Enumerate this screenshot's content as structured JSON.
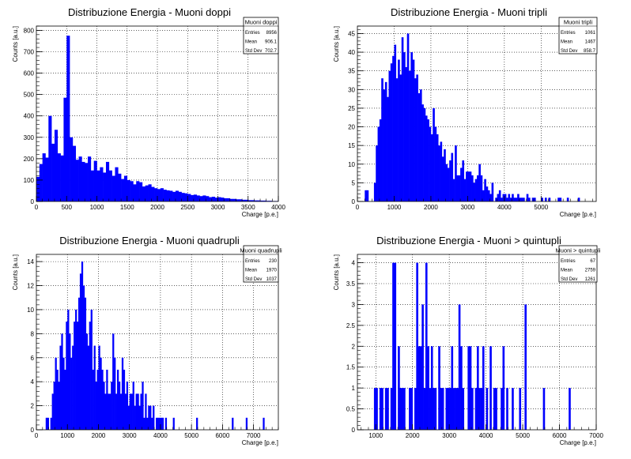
{
  "chart_data": [
    {
      "type": "bar",
      "title": "Distribuzione Energia - Muoni doppi",
      "xlabel": "Charge [p.e.]",
      "ylabel": "Counts [a.u.]",
      "xlim": [
        0,
        4000
      ],
      "ylim": [
        0,
        820
      ],
      "xticks": [
        0,
        500,
        1000,
        1500,
        2000,
        2500,
        3000,
        3500,
        4000
      ],
      "yticks": [
        0,
        100,
        200,
        300,
        400,
        500,
        600,
        700,
        800
      ],
      "grid": true,
      "bar_color": "#0000ff",
      "bin_width": 50,
      "bin_start": 0,
      "values": [
        115,
        175,
        225,
        205,
        400,
        270,
        335,
        225,
        215,
        485,
        775,
        300,
        260,
        195,
        210,
        185,
        180,
        210,
        145,
        190,
        145,
        160,
        135,
        185,
        145,
        120,
        160,
        130,
        105,
        120,
        100,
        95,
        80,
        95,
        90,
        70,
        75,
        80,
        68,
        62,
        58,
        62,
        55,
        52,
        50,
        45,
        50,
        45,
        40,
        38,
        35,
        30,
        32,
        28,
        25,
        28,
        25,
        20,
        22,
        18,
        20,
        18,
        15,
        15,
        12,
        12,
        10,
        10,
        8,
        8,
        6,
        6,
        5,
        5,
        4,
        4,
        3,
        3,
        2,
        2
      ],
      "legend": {
        "placement": "top-right",
        "title": "Muoni doppi",
        "rows": [
          {
            "label": "Entries",
            "value": "8956"
          },
          {
            "label": "Mean",
            "value": "906.1"
          },
          {
            "label": "Std Dev",
            "value": "702.7"
          }
        ]
      }
    },
    {
      "type": "bar",
      "title": "Distribuzione Energia - Muoni tripli",
      "xlabel": "Charge [p.e.]",
      "ylabel": "Counts [a.u.]",
      "xlim": [
        0,
        6500
      ],
      "ylim": [
        0,
        47
      ],
      "xticks": [
        0,
        1000,
        2000,
        3000,
        4000,
        5000
      ],
      "yticks": [
        0,
        5,
        10,
        15,
        20,
        25,
        30,
        35,
        40,
        45
      ],
      "grid": true,
      "bar_color": "#0000ff",
      "bin_width": 50,
      "bin_start": 0,
      "values": [
        0,
        0,
        0,
        0,
        3,
        3,
        0,
        0,
        0,
        5,
        15,
        20,
        22,
        33,
        30,
        32,
        28,
        35,
        37,
        39,
        42,
        33,
        38,
        34,
        44,
        40,
        36,
        45,
        35,
        40,
        38,
        33,
        34,
        29,
        30,
        26,
        25,
        23,
        22,
        20,
        18,
        25,
        20,
        18,
        15,
        16,
        12,
        14,
        10,
        9,
        11,
        13,
        6,
        15,
        7,
        7,
        9,
        11,
        6,
        8,
        8,
        8,
        7,
        5,
        6,
        7,
        10,
        7,
        3,
        6,
        4,
        3,
        2,
        5,
        0,
        1,
        2,
        3,
        1,
        2,
        2,
        1,
        2,
        1,
        2,
        1,
        1,
        2,
        1,
        1,
        1,
        0,
        2,
        1,
        0,
        1,
        1,
        0,
        0,
        0,
        1,
        0,
        1,
        0,
        1,
        0,
        0,
        0,
        0,
        1,
        1,
        0,
        0,
        0,
        1,
        0,
        0,
        0,
        0,
        0,
        1,
        0,
        0,
        0,
        0,
        0,
        0,
        0,
        0,
        0
      ],
      "legend": {
        "placement": "top-right",
        "title": "Muoni tripli",
        "rows": [
          {
            "label": "Entries",
            "value": "1061"
          },
          {
            "label": "Mean",
            "value": "1467"
          },
          {
            "label": "Std Dev",
            "value": "858.7"
          }
        ]
      }
    },
    {
      "type": "bar",
      "title": "Distribuzione Energia - Muoni quadrupli",
      "xlabel": "Charge [p.e.]",
      "ylabel": "Counts [a.u.]",
      "xlim": [
        0,
        7800
      ],
      "ylim": [
        0,
        14.6
      ],
      "xticks": [
        0,
        1000,
        2000,
        3000,
        4000,
        5000,
        6000,
        7000
      ],
      "yticks": [
        0,
        2,
        4,
        6,
        8,
        10,
        12,
        14
      ],
      "grid": true,
      "bar_color": "#0000ff",
      "bin_width": 50,
      "bin_start": 0,
      "values": [
        0,
        0,
        0,
        0,
        0,
        0,
        1,
        1,
        0,
        1,
        3,
        4,
        6,
        5,
        4,
        7,
        8,
        6,
        5,
        9,
        10,
        8,
        6,
        7,
        9,
        10,
        9,
        11,
        13,
        14,
        12,
        11,
        8,
        7,
        9,
        10,
        5,
        7,
        4,
        5,
        7,
        6,
        5,
        4,
        3,
        5,
        3,
        3,
        4,
        8,
        6,
        3,
        5,
        4,
        3,
        6,
        5,
        3,
        4,
        2,
        3,
        3,
        4,
        2,
        3,
        3,
        2,
        3,
        4,
        1,
        3,
        1,
        2,
        2,
        1,
        2,
        0,
        1,
        1,
        1,
        1,
        1,
        0,
        1,
        0,
        0,
        0,
        0,
        1,
        0,
        0,
        0,
        0,
        0,
        0,
        0,
        0,
        0,
        0,
        0,
        0,
        0,
        0,
        1,
        0,
        0,
        0,
        0,
        0,
        0,
        0,
        0,
        0,
        0,
        0,
        0,
        0,
        0,
        0,
        0,
        0,
        0,
        0,
        0,
        0,
        0,
        1,
        0,
        0,
        0,
        0,
        0,
        0,
        0,
        0,
        1,
        0,
        0,
        0,
        0,
        0,
        0,
        0,
        0,
        0,
        0,
        1,
        0,
        0,
        0,
        0,
        0,
        0,
        0,
        0,
        0,
        0,
        0,
        0,
        0,
        0,
        0,
        0,
        0,
        0,
        0,
        0,
        0,
        0,
        0,
        0,
        0,
        0,
        0,
        0,
        0,
        0,
        0,
        0,
        0,
        0,
        0,
        0,
        0,
        0,
        0,
        0,
        0,
        0,
        0,
        0,
        0,
        0,
        0,
        0,
        0,
        0,
        0,
        0,
        0,
        0,
        0,
        0,
        0,
        0,
        0,
        0,
        0,
        0,
        0,
        0,
        0,
        0,
        0,
        0,
        0,
        0,
        0,
        0,
        0,
        0,
        0,
        0,
        0,
        0,
        0,
        0,
        0,
        0,
        0,
        0,
        0,
        0,
        0,
        0,
        0,
        0,
        0,
        0,
        0,
        0,
        0,
        0,
        0,
        0,
        0,
        0,
        0,
        0,
        0,
        0,
        0,
        0,
        0,
        0,
        0,
        0,
        0,
        0,
        0,
        0,
        0,
        0,
        0,
        0,
        0,
        0,
        0,
        0,
        0,
        0,
        0,
        0,
        0,
        0,
        0,
        0,
        0,
        0,
        0,
        0,
        0,
        0,
        0,
        0,
        0,
        0,
        0,
        0,
        0,
        0,
        0,
        0,
        0,
        0,
        0,
        0,
        0,
        0,
        0,
        0,
        0,
        0,
        0,
        0,
        0,
        0,
        0,
        0,
        0,
        0,
        0,
        0,
        0,
        0,
        0,
        0,
        0,
        0,
        0,
        0,
        0,
        0,
        0,
        0,
        0,
        0,
        0,
        0,
        0,
        0,
        0,
        0,
        0,
        0,
        0,
        0,
        0,
        0,
        0,
        0,
        0,
        0,
        0,
        0,
        0,
        0,
        0,
        0,
        0,
        0,
        0,
        0,
        0,
        0,
        0,
        0,
        0,
        0,
        0,
        0,
        0,
        0,
        0,
        0,
        0,
        0,
        0,
        0,
        0,
        0,
        0,
        0,
        0,
        0,
        0,
        0,
        0,
        0,
        0,
        0,
        0,
        0,
        0,
        0,
        0,
        0,
        0,
        0,
        0,
        0,
        0,
        0,
        0,
        0,
        0,
        0,
        0,
        0,
        0,
        0,
        0,
        0,
        0,
        0,
        0,
        0,
        0,
        0,
        0,
        0,
        0,
        0,
        0,
        0,
        0,
        0,
        0
      ],
      "legend": {
        "placement": "top-right",
        "title": "Muoni quadrupli",
        "rows": [
          {
            "label": "Entries",
            "value": "230"
          },
          {
            "label": "Mean",
            "value": "1970"
          },
          {
            "label": "Std Dev",
            "value": "1037"
          }
        ]
      }
    },
    {
      "type": "bar",
      "title": "Distribuzione Energia - Muoni > quintupli",
      "xlabel": "Charge [p.e.]",
      "ylabel": "Counts [a.u.]",
      "xlim": [
        500,
        7000
      ],
      "ylim": [
        0,
        4.2
      ],
      "xticks": [
        1000,
        2000,
        3000,
        4000,
        5000,
        6000,
        7000
      ],
      "yticks": [
        0,
        0.5,
        1,
        1.5,
        2,
        2.5,
        3,
        3.5,
        4
      ],
      "grid": true,
      "bar_color": "#0000ff",
      "bin_width": 50,
      "bin_start": 500,
      "values": [
        0,
        0,
        0,
        0,
        0,
        0,
        0,
        0,
        0,
        1,
        1,
        0,
        1,
        1,
        0,
        1,
        1,
        0,
        1,
        4,
        4,
        0,
        2,
        1,
        1,
        1,
        0,
        0,
        1,
        1,
        0,
        1,
        4,
        2,
        2,
        3,
        1,
        4,
        2,
        1,
        2,
        1,
        1,
        0,
        2,
        1,
        1,
        0,
        1,
        1,
        1,
        2,
        1,
        1,
        1,
        3,
        2,
        1,
        0,
        0,
        2,
        2,
        1,
        0,
        1,
        2,
        1,
        1,
        2,
        0,
        1,
        0,
        2,
        0,
        1,
        1,
        0,
        0,
        1,
        2,
        0,
        1,
        0,
        0,
        1,
        0,
        0,
        0,
        1,
        0,
        0,
        3,
        0,
        0,
        0,
        0,
        0,
        0,
        0,
        0,
        0,
        1,
        0,
        0,
        0,
        0,
        0,
        0,
        0,
        0,
        0,
        0,
        0,
        0,
        0,
        1,
        0,
        0,
        0,
        0,
        0,
        0,
        0,
        0,
        0,
        0,
        0,
        0,
        0,
        0
      ],
      "legend": {
        "placement": "top-right",
        "title": "Muoni > quintupli",
        "rows": [
          {
            "label": "Entries",
            "value": "67"
          },
          {
            "label": "Mean",
            "value": "2759"
          },
          {
            "label": "Std Dev",
            "value": "1261"
          }
        ]
      }
    }
  ]
}
